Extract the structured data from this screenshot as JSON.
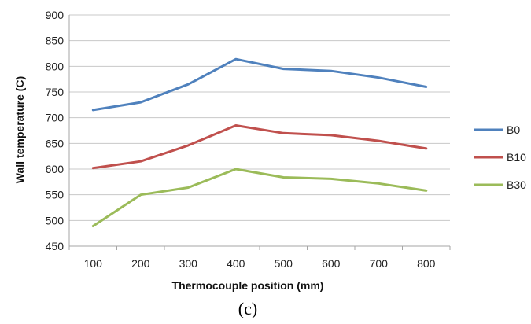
{
  "chart_data": {
    "type": "line",
    "categories": [
      "100",
      "200",
      "300",
      "400",
      "500",
      "600",
      "700",
      "800"
    ],
    "series": [
      {
        "name": "B0",
        "color": "#4F81BD",
        "values": [
          715,
          730,
          765,
          814,
          795,
          791,
          778,
          760
        ]
      },
      {
        "name": "B10",
        "color": "#C0504D",
        "values": [
          602,
          615,
          646,
          685,
          670,
          666,
          655,
          640
        ]
      },
      {
        "name": "B30",
        "color": "#9BBB59",
        "values": [
          489,
          550,
          564,
          600,
          584,
          581,
          572,
          558
        ]
      }
    ],
    "xlabel": "Thermocouple position (mm)",
    "ylabel": "Wall temperature (C)",
    "ylim": [
      450,
      900
    ],
    "yticks": [
      "450",
      "500",
      "550",
      "600",
      "650",
      "700",
      "750",
      "800",
      "850",
      "900"
    ],
    "grid": true,
    "gridColor": "#C8C8C8",
    "legend": "right"
  },
  "caption": "(c)"
}
